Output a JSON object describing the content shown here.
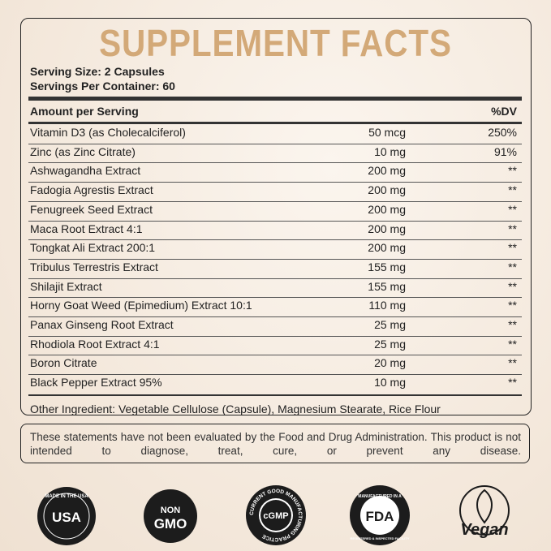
{
  "title": "SUPPLEMENT FACTS",
  "serving_size": "Serving Size: 2 Capsules",
  "servings_per_container": "Servings Per Container: 60",
  "header": {
    "amount": "Amount per Serving",
    "dv": "%DV"
  },
  "rows": [
    [
      "Vitamin D3 (as Cholecalciferol)",
      "50 mcg",
      "250%"
    ],
    [
      "Zinc (as Zinc Citrate)",
      "10 mg",
      "91%"
    ],
    [
      "Ashwagandha Extract",
      "200 mg",
      "**"
    ],
    [
      "Fadogia Agrestis Extract",
      "200 mg",
      "**"
    ],
    [
      "Fenugreek Seed Extract",
      "200 mg",
      "**"
    ],
    [
      "Maca Root Extract 4:1",
      "200 mg",
      "**"
    ],
    [
      "Tongkat Ali Extract 200:1",
      "200 mg",
      "**"
    ],
    [
      "Tribulus Terrestris Extract",
      "155 mg",
      "**"
    ],
    [
      "Shilajit Extract",
      "155 mg",
      "**"
    ],
    [
      "Horny Goat Weed (Epimedium) Extract 10:1",
      "110 mg",
      "**"
    ],
    [
      "Panax Ginseng Root Extract",
      "25 mg",
      "**"
    ],
    [
      "Rhodiola Root Extract 4:1",
      "25 mg",
      "**"
    ],
    [
      "Boron Citrate",
      "20 mg",
      "**"
    ],
    [
      "Black Pepper Extract 95%",
      "10 mg",
      "**"
    ]
  ],
  "other_ingredients": "Other Ingredient: Vegetable Cellulose (Capsule), Magnesium Stearate, Rice Flour",
  "disclaimer": "These statements have not been evaluated by the Food and Drug Administration. This product is not intended to diagnose, treat, cure, or prevent any disease.",
  "badges": {
    "usa": {
      "top": "MADE IN THE USA",
      "main": "USA"
    },
    "gmo": {
      "top": "NON",
      "main": "GMO"
    },
    "cgmp": {
      "ring": "CURRENT GOOD MANUFACTURING PRACTICE",
      "main": "cGMP"
    },
    "fda": {
      "top": "MANUFACTURED IN A",
      "main": "FDA",
      "bottom": "REGISTERED & INSPECTED FACILITY"
    },
    "vegan": {
      "main": "Vegan"
    }
  }
}
